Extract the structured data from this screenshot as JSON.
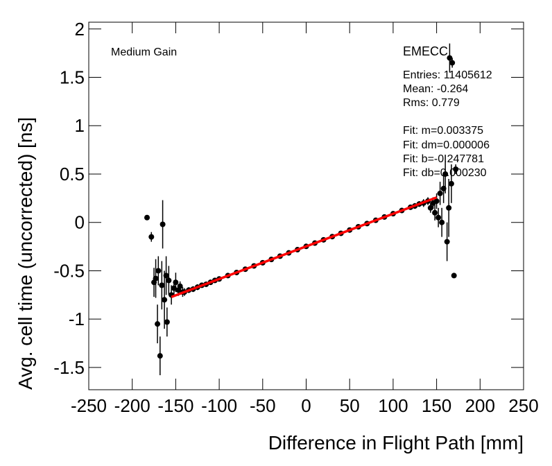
{
  "chart_data": {
    "type": "scatter",
    "xlabel": "Difference in Flight Path [mm]",
    "ylabel": "Avg. cell time (uncorrected) [ns]",
    "annotations": [
      "Medium Gain",
      "EMECC",
      "Entries: 11405612",
      "Mean: -0.264",
      "Rms: 0.779",
      "Fit: m=0.003375",
      "Fit: dm=0.000006",
      "Fit: b=-0.247781",
      "Fit: db=0.000230"
    ],
    "xlim": [
      -250,
      250
    ],
    "xticks": [
      -250,
      -200,
      -150,
      -100,
      -50,
      0,
      50,
      100,
      150,
      200,
      250
    ],
    "ylim": [
      -1.73,
      2.07
    ],
    "yticks": [
      -1.5,
      -1,
      -0.5,
      0,
      0.5,
      1,
      1.5,
      2
    ],
    "color": "#000000",
    "x": [
      -183,
      -178,
      -175,
      -173,
      -171,
      -170,
      -168,
      -166,
      -165,
      -163,
      -161,
      -160,
      -158,
      -155,
      -152,
      -150,
      -147,
      -145,
      -142,
      -140,
      -135,
      -130,
      -125,
      -120,
      -115,
      -110,
      -105,
      -100,
      -90,
      -80,
      -70,
      -60,
      -50,
      -40,
      -30,
      -20,
      -10,
      0,
      10,
      20,
      30,
      40,
      50,
      60,
      70,
      80,
      90,
      100,
      110,
      120,
      125,
      130,
      135,
      140,
      143,
      146,
      148,
      150,
      152,
      154,
      156,
      158,
      160,
      162,
      164,
      165,
      167,
      168,
      170,
      172
    ],
    "values": [
      0.05,
      -0.15,
      -0.62,
      -0.58,
      -1.05,
      -0.5,
      -1.38,
      -0.65,
      -0.02,
      -0.8,
      -0.55,
      -1.03,
      -0.6,
      -0.75,
      -0.68,
      -0.62,
      -0.7,
      -0.66,
      -0.72,
      -0.72,
      -0.7,
      -0.69,
      -0.67,
      -0.65,
      -0.64,
      -0.62,
      -0.6,
      -0.585,
      -0.55,
      -0.518,
      -0.484,
      -0.45,
      -0.417,
      -0.383,
      -0.349,
      -0.315,
      -0.282,
      -0.248,
      -0.214,
      -0.18,
      -0.147,
      -0.113,
      -0.079,
      -0.045,
      -0.012,
      0.022,
      0.056,
      0.09,
      0.123,
      0.157,
      0.17,
      0.19,
      0.2,
      0.22,
      0.15,
      0.2,
      0.1,
      0.22,
      0.05,
      0.3,
      0.0,
      0.35,
      0.5,
      -0.2,
      0.15,
      1.7,
      0.4,
      1.65,
      -0.55,
      0.55
    ],
    "errors": [
      0.02,
      0.05,
      0.15,
      0.2,
      0.2,
      0.15,
      0.2,
      0.25,
      0.25,
      0.3,
      0.2,
      0.15,
      0.15,
      0.1,
      0.08,
      0.1,
      0.06,
      0.05,
      0.05,
      0.04,
      0.03,
      0.03,
      0.03,
      0.02,
      0.02,
      0.02,
      0.02,
      0.02,
      0.01,
      0.01,
      0.01,
      0.01,
      0.01,
      0.01,
      0.01,
      0.01,
      0.01,
      0.01,
      0.01,
      0.01,
      0.01,
      0.01,
      0.01,
      0.01,
      0.01,
      0.01,
      0.01,
      0.02,
      0.02,
      0.02,
      0.03,
      0.03,
      0.04,
      0.04,
      0.05,
      0.06,
      0.08,
      0.08,
      0.1,
      0.12,
      0.15,
      0.15,
      0.2,
      0.2,
      0.3,
      0.15,
      0.2,
      0.05,
      0.02,
      0.05
    ],
    "fit": {
      "color": "#ff0000",
      "x": [
        -155,
        150
      ],
      "y": [
        -0.771,
        0.258
      ]
    }
  }
}
